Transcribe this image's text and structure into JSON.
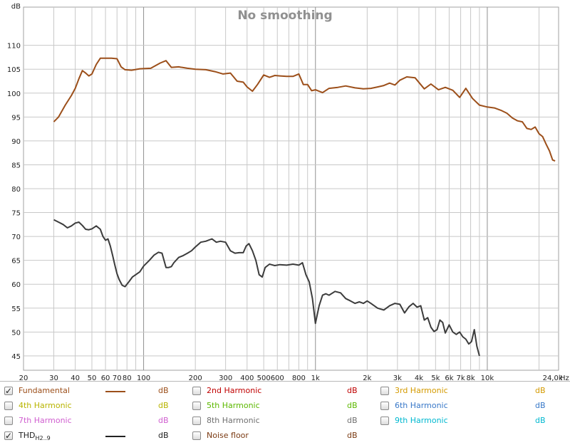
{
  "colors": {
    "fundamental": "#9c4f1a",
    "thd": "#3c3c3c",
    "grid": "#c8c8c8",
    "grid_major": "#909090",
    "axis_text": "#222222",
    "title": "#909090"
  },
  "chart_data": {
    "type": "line",
    "title": "No smoothing",
    "ylabel": "dB",
    "xunit": "Hz",
    "xscale": "log",
    "xlim": [
      20,
      26000
    ],
    "ylim": [
      42,
      118
    ],
    "grid": true,
    "yticks": [
      45,
      50,
      55,
      60,
      65,
      70,
      75,
      80,
      85,
      90,
      95,
      100,
      105,
      110
    ],
    "xticks": [
      {
        "v": 20,
        "label": "20"
      },
      {
        "v": 30,
        "label": "30"
      },
      {
        "v": 40,
        "label": "40"
      },
      {
        "v": 50,
        "label": "50"
      },
      {
        "v": 60,
        "label": "60"
      },
      {
        "v": 70,
        "label": "70"
      },
      {
        "v": 80,
        "label": "80"
      },
      {
        "v": 100,
        "label": "100"
      },
      {
        "v": 200,
        "label": "200"
      },
      {
        "v": 300,
        "label": "300"
      },
      {
        "v": 400,
        "label": "400"
      },
      {
        "v": 500,
        "label": "500"
      },
      {
        "v": 600,
        "label": "600"
      },
      {
        "v": 800,
        "label": "800"
      },
      {
        "v": 1000,
        "label": "1k"
      },
      {
        "v": 2000,
        "label": "2k"
      },
      {
        "v": 3000,
        "label": "3k"
      },
      {
        "v": 4000,
        "label": "4k"
      },
      {
        "v": 5000,
        "label": "5k"
      },
      {
        "v": 6000,
        "label": "6k"
      },
      {
        "v": 7000,
        "label": "7k"
      },
      {
        "v": 8000,
        "label": "8k"
      },
      {
        "v": 10000,
        "label": "10k"
      },
      {
        "v": 24000,
        "label": "24,0k"
      }
    ],
    "series": [
      {
        "name": "Fundamental",
        "color": "#9c4f1a",
        "x": [
          30,
          32,
          35,
          38,
          40,
          42,
          44,
          46,
          48,
          50,
          53,
          56,
          60,
          65,
          70,
          74,
          78,
          85,
          95,
          110,
          125,
          135,
          145,
          160,
          180,
          200,
          230,
          260,
          290,
          320,
          350,
          380,
          400,
          430,
          460,
          500,
          540,
          580,
          620,
          680,
          740,
          800,
          850,
          900,
          950,
          1000,
          1100,
          1200,
          1350,
          1500,
          1700,
          1900,
          2100,
          2300,
          2500,
          2700,
          2900,
          3100,
          3400,
          3800,
          4300,
          4700,
          5200,
          5700,
          6300,
          6900,
          7500,
          8200,
          9000,
          10000,
          11000,
          12000,
          13000,
          14000,
          15000,
          16000,
          17000,
          18000,
          19000,
          20000,
          21000,
          22000,
          23000,
          24000,
          24800
        ],
        "y": [
          94,
          95,
          97.5,
          99.5,
          101,
          103,
          104.7,
          104.2,
          103.6,
          104,
          106,
          107.3,
          107.3,
          107.3,
          107.2,
          105.5,
          104.9,
          104.8,
          105.1,
          105.2,
          106.3,
          106.8,
          105.4,
          105.5,
          105.2,
          105.0,
          104.9,
          104.5,
          104.0,
          104.2,
          102.5,
          102.3,
          101.3,
          100.4,
          101.8,
          103.8,
          103.3,
          103.7,
          103.6,
          103.5,
          103.5,
          104.0,
          101.8,
          101.8,
          100.5,
          100.7,
          100.1,
          101,
          101.2,
          101.5,
          101.1,
          100.9,
          101.0,
          101.3,
          101.6,
          102.1,
          101.7,
          102.7,
          103.4,
          103.2,
          100.9,
          101.9,
          100.7,
          101.2,
          100.6,
          99.1,
          101.0,
          98.9,
          97.5,
          97.1,
          96.9,
          96.4,
          95.8,
          94.8,
          94.2,
          94.0,
          92.6,
          92.4,
          92.9,
          91.5,
          90.9,
          89.3,
          87.9,
          86.0,
          85.8
        ]
      },
      {
        "name": "THD",
        "color": "#3c3c3c",
        "x": [
          30,
          32,
          34,
          36,
          38,
          40,
          42,
          44,
          46,
          48,
          50,
          53,
          56,
          58,
          60,
          62,
          64,
          66,
          68,
          70,
          72,
          75,
          78,
          82,
          86,
          90,
          95,
          100,
          108,
          115,
          122,
          128,
          135,
          140,
          145,
          150,
          160,
          170,
          180,
          190,
          200,
          215,
          230,
          250,
          265,
          280,
          300,
          320,
          340,
          360,
          380,
          395,
          410,
          430,
          450,
          470,
          490,
          510,
          540,
          580,
          620,
          680,
          740,
          800,
          840,
          880,
          920,
          960,
          1000,
          1050,
          1100,
          1150,
          1200,
          1300,
          1400,
          1500,
          1600,
          1700,
          1800,
          1900,
          2000,
          2100,
          2300,
          2500,
          2700,
          2900,
          3100,
          3300,
          3500,
          3700,
          3900,
          4100,
          4300,
          4500,
          4700,
          4900,
          5100,
          5300,
          5500,
          5700,
          6000,
          6300,
          6600,
          6900,
          7200,
          7500,
          7800,
          8100,
          8400,
          8700,
          9000
        ],
        "y": [
          73.5,
          73,
          72.5,
          71.8,
          72.2,
          72.8,
          73,
          72.3,
          71.5,
          71.4,
          71.6,
          72.2,
          71.5,
          70,
          69.2,
          69.5,
          68,
          66,
          64,
          62.2,
          61,
          59.8,
          59.5,
          60.5,
          61.5,
          62,
          62.6,
          63.8,
          65,
          66.1,
          66.7,
          66.5,
          63.5,
          63.5,
          63.7,
          64.5,
          65.6,
          66.0,
          66.5,
          67.0,
          67.8,
          68.8,
          69.0,
          69.5,
          68.8,
          69.0,
          68.8,
          67.0,
          66.5,
          66.6,
          66.6,
          68.0,
          68.5,
          67.0,
          65.0,
          62.0,
          61.5,
          63.5,
          64.2,
          63.9,
          64.1,
          64.0,
          64.2,
          64.0,
          64.5,
          62.0,
          60.5,
          57.0,
          51.8,
          55.5,
          57.7,
          58.0,
          57.7,
          58.5,
          58.2,
          57.0,
          56.5,
          56.0,
          56.3,
          56.0,
          56.5,
          56.0,
          55.0,
          54.6,
          55.5,
          56.0,
          55.8,
          54.0,
          55.3,
          56.0,
          55.2,
          55.5,
          52.5,
          53.0,
          51.0,
          50.1,
          50.5,
          52.5,
          52.0,
          49.8,
          51.5,
          50.0,
          49.5,
          50.0,
          49.0,
          48.5,
          47.5,
          48.0,
          50.5,
          47.0,
          45.0
        ]
      }
    ]
  },
  "legend": {
    "rows": [
      [
        {
          "label": "Fundamental",
          "color": "#9c4f1a",
          "checked": true,
          "unit": "dB",
          "unit_color": "#9c4f1a"
        },
        {
          "label": "2nd Harmonic",
          "color": "#c00000",
          "checked": false,
          "unit": "dB",
          "unit_color": "#c00000"
        },
        {
          "label": "3rd Harmonic",
          "color": "#d49a00",
          "checked": false,
          "unit": "dB",
          "unit_color": "#d49a00"
        }
      ],
      [
        {
          "label": "4th Harmonic",
          "color": "#b8b400",
          "checked": false,
          "unit": "dB",
          "unit_color": "#b8b400"
        },
        {
          "label": "5th Harmonic",
          "color": "#5cb800",
          "checked": false,
          "unit": "dB",
          "unit_color": "#5cb800"
        },
        {
          "label": "6th Harmonic",
          "color": "#3878c8",
          "checked": false,
          "unit": "dB",
          "unit_color": "#3878c8"
        }
      ],
      [
        {
          "label": "7th Harmonic",
          "color": "#d060d0",
          "checked": false,
          "unit": "dB",
          "unit_color": "#d060d0"
        },
        {
          "label": "8th Harmonic",
          "color": "#707070",
          "checked": false,
          "unit": "dB",
          "unit_color": "#707070"
        },
        {
          "label": "9th Harmonic",
          "color": "#00b8d0",
          "checked": false,
          "unit": "dB",
          "unit_color": "#00b8d0"
        }
      ],
      [
        {
          "label": "THD",
          "sub": "H2..9",
          "color": "#222222",
          "checked": true,
          "unit": "dB",
          "unit_color": "#222222"
        },
        {
          "label": "Noise floor",
          "color": "#7a3a12",
          "checked": false,
          "unit": "dB",
          "unit_color": "#7a3a12"
        }
      ]
    ]
  }
}
